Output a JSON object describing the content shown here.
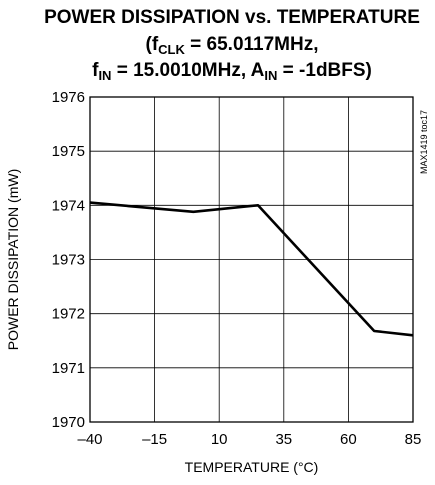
{
  "title": {
    "line1": "POWER DISSIPATION vs. TEMPERATURE",
    "line2_prefix": "(f",
    "line2_sub": "CLK",
    "line2_suffix": " = 65.0117MHz,",
    "line3_a": "f",
    "line3_a_sub": "IN",
    "line3_b": " = 15.0010MHz, A",
    "line3_b_sub": "IN",
    "line3_c": " = -1dBFS)"
  },
  "figure_code": "MAX1419 toc17",
  "chart_data": {
    "type": "line",
    "xlabel": "TEMPERATURE (°C)",
    "ylabel": "POWER DISSIPATION (mW)",
    "xlim": [
      -40,
      85
    ],
    "ylim": [
      1970,
      1976
    ],
    "x_ticks": [
      -40,
      -15,
      10,
      35,
      60,
      85
    ],
    "y_ticks": [
      1970,
      1971,
      1972,
      1973,
      1974,
      1975,
      1976
    ],
    "grid": true,
    "series": [
      {
        "x": [
          -40,
          0,
          25,
          70,
          85
        ],
        "y": [
          1974.05,
          1973.88,
          1974.0,
          1971.68,
          1971.6
        ]
      }
    ]
  }
}
